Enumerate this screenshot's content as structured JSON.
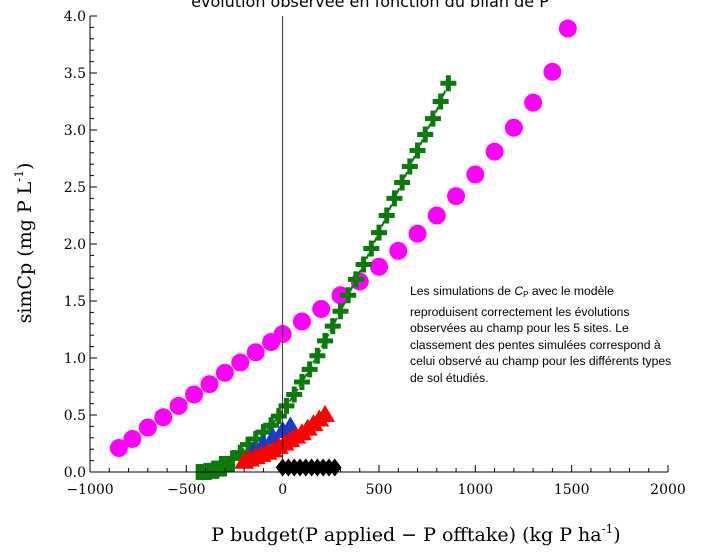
{
  "chart_data": {
    "type": "scatter",
    "title": "évolution observée en fonction du bilan de P",
    "xlabel": {
      "main": "P budget(P applied − P offtake) (kg P ha",
      "sup": "-1",
      "close": ")"
    },
    "ylabel": {
      "main": "simCp (mg P L",
      "sup": "-1",
      "close": ")"
    },
    "xlim": [
      -1000,
      2000
    ],
    "ylim": [
      0,
      4
    ],
    "xticks": [
      {
        "v": -1000,
        "label": "−1000"
      },
      {
        "v": -500,
        "label": "−500"
      },
      {
        "v": 0,
        "label": "0"
      },
      {
        "v": 500,
        "label": "500"
      },
      {
        "v": 1000,
        "label": "1000"
      },
      {
        "v": 1500,
        "label": "1500"
      },
      {
        "v": 2000,
        "label": "2000"
      }
    ],
    "yticks": [
      {
        "v": 0.0,
        "label": "0.0"
      },
      {
        "v": 0.5,
        "label": "0.5"
      },
      {
        "v": 1.0,
        "label": "1.0"
      },
      {
        "v": 1.5,
        "label": "1.5"
      },
      {
        "v": 2.0,
        "label": "2.0"
      },
      {
        "v": 2.5,
        "label": "2.5"
      },
      {
        "v": 3.0,
        "label": "3.0"
      },
      {
        "v": 3.5,
        "label": "3.5"
      },
      {
        "v": 4.0,
        "label": "4.0"
      }
    ],
    "reference_line_x": 0,
    "grid": false,
    "series": [
      {
        "color": "#ff00ff",
        "marker": "circle",
        "x": [
          -850,
          -780,
          -700,
          -620,
          -540,
          -460,
          -380,
          -300,
          -220,
          -140,
          -60,
          0,
          100,
          200,
          300,
          400,
          500,
          600,
          700,
          800,
          900,
          1000,
          1100,
          1200,
          1300,
          1400,
          1480
        ],
        "y": [
          0.21,
          0.29,
          0.39,
          0.48,
          0.58,
          0.68,
          0.77,
          0.87,
          0.96,
          1.05,
          1.14,
          1.21,
          1.32,
          1.43,
          1.55,
          1.67,
          1.8,
          1.94,
          2.09,
          2.25,
          2.42,
          2.61,
          2.81,
          3.02,
          3.24,
          3.51,
          3.89
        ]
      },
      {
        "color": "#0a7a0a",
        "marker": "square",
        "x": [
          -410,
          -370,
          -330,
          -290
        ],
        "y": [
          0.0,
          0.01,
          0.03,
          0.07
        ]
      },
      {
        "color": "#0a7a0a",
        "marker": "plus",
        "connected": true,
        "x": [
          -260,
          -220,
          -180,
          -140,
          -100,
          -60,
          -20,
          20,
          60,
          100,
          140,
          180,
          220,
          260,
          300,
          340,
          380,
          420,
          460,
          500,
          540,
          580,
          620,
          660,
          700,
          740,
          780,
          820,
          860
        ],
        "y": [
          0.12,
          0.17,
          0.24,
          0.29,
          0.35,
          0.41,
          0.49,
          0.58,
          0.68,
          0.79,
          0.9,
          1.02,
          1.15,
          1.28,
          1.41,
          1.55,
          1.69,
          1.82,
          1.96,
          2.1,
          2.25,
          2.4,
          2.54,
          2.68,
          2.82,
          2.96,
          3.1,
          3.25,
          3.41
        ]
      },
      {
        "color": "#1a3ac8",
        "marker": "triangle",
        "x": [
          -150,
          -100,
          -50,
          0,
          40
        ],
        "y": [
          0.18,
          0.24,
          0.3,
          0.36,
          0.4
        ]
      },
      {
        "color": "#ff0000",
        "marker": "triangle",
        "x": [
          -200,
          -170,
          -140,
          -110,
          -80,
          -50,
          -20,
          10,
          40,
          70,
          100,
          130,
          160,
          190,
          220
        ],
        "y": [
          0.09,
          0.11,
          0.13,
          0.15,
          0.17,
          0.19,
          0.22,
          0.25,
          0.28,
          0.31,
          0.34,
          0.38,
          0.42,
          0.46,
          0.5
        ]
      },
      {
        "color": "#000000",
        "marker": "diamond",
        "x": [
          0,
          30,
          60,
          90,
          120,
          150,
          180,
          210,
          240,
          270
        ],
        "y": [
          0.04,
          0.04,
          0.04,
          0.04,
          0.04,
          0.04,
          0.04,
          0.04,
          0.04,
          0.04
        ]
      }
    ]
  },
  "annotation": {
    "part1": "Les simulations de ",
    "sym": "C",
    "sub": "P",
    "part2": " avec le modèle reproduisent correctement les évolutions observées au champ pour les 5 sites. Le classement des pentes simulées correspond à celui observé au champ pour les différents types de sol étudiés."
  }
}
